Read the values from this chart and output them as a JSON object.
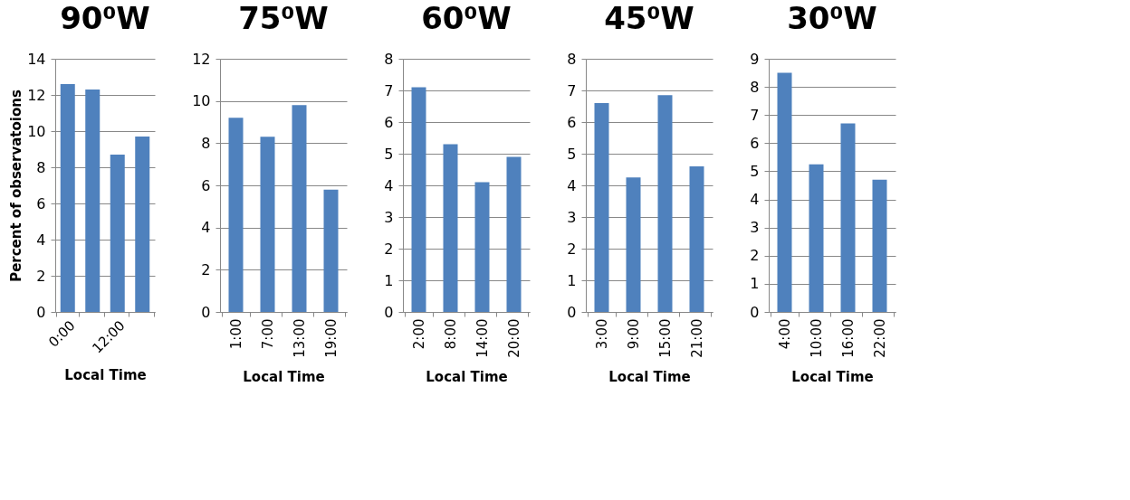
{
  "chart_data": [
    {
      "type": "bar",
      "title": "90⁰W",
      "xlabel": "Local Time",
      "ylabel": "Percent of observatoions",
      "categories": [
        "0:00",
        null,
        "12:00",
        null
      ],
      "values": [
        12.6,
        12.3,
        8.7,
        9.7
      ],
      "color": "#4f81bd",
      "ylim": [
        0,
        14
      ],
      "yticks": [
        0,
        2,
        4,
        6,
        8,
        10,
        12,
        14
      ],
      "grid": "y"
    },
    {
      "type": "bar",
      "title": "75⁰W",
      "xlabel": "Local Time",
      "categories": [
        "1:00",
        "7:00",
        "13:00",
        "19:00"
      ],
      "values": [
        9.2,
        8.3,
        9.8,
        5.8
      ],
      "color": "#4f81bd",
      "ylim": [
        0,
        12
      ],
      "yticks": [
        0,
        2,
        4,
        6,
        8,
        10,
        12
      ],
      "grid": "y"
    },
    {
      "type": "bar",
      "title": "60⁰W",
      "xlabel": "Local Time",
      "categories": [
        "2:00",
        "8:00",
        "14:00",
        "20:00"
      ],
      "values": [
        7.1,
        5.3,
        4.1,
        4.9
      ],
      "color": "#4f81bd",
      "ylim": [
        0,
        8
      ],
      "yticks": [
        0,
        1,
        2,
        3,
        4,
        5,
        6,
        7,
        8
      ],
      "grid": "y"
    },
    {
      "type": "bar",
      "title": "45⁰W",
      "xlabel": "Local Time",
      "categories": [
        "3:00",
        "9:00",
        "15:00",
        "21:00"
      ],
      "values": [
        6.6,
        4.25,
        6.85,
        4.6
      ],
      "color": "#4f81bd",
      "ylim": [
        0,
        8
      ],
      "yticks": [
        0,
        1,
        2,
        3,
        4,
        5,
        6,
        7,
        8
      ],
      "grid": "y"
    },
    {
      "type": "bar",
      "title": "30⁰W",
      "xlabel": "Local Time",
      "categories": [
        "4:00",
        "10:00",
        "16:00",
        "22:00"
      ],
      "values": [
        8.5,
        5.25,
        6.7,
        4.7
      ],
      "color": "#4f81bd",
      "ylim": [
        0,
        9
      ],
      "yticks": [
        0,
        1,
        2,
        3,
        4,
        5,
        6,
        7,
        8,
        9
      ],
      "grid": "y"
    }
  ]
}
